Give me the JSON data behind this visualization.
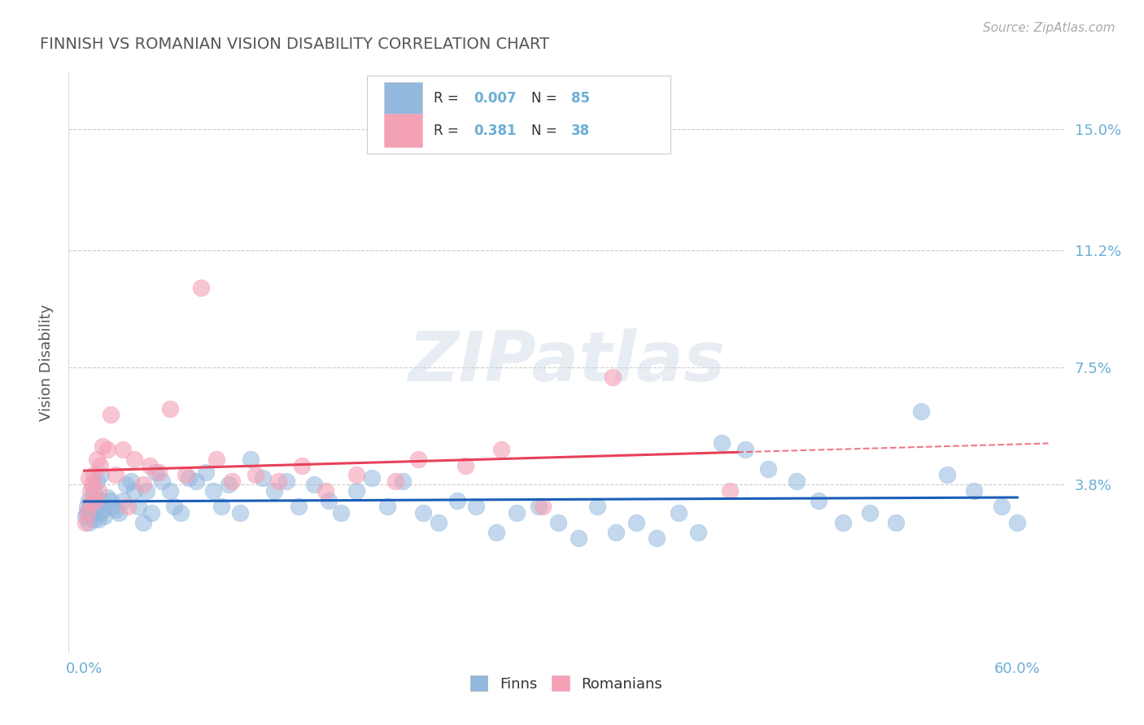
{
  "title": "FINNISH VS ROMANIAN VISION DISABILITY CORRELATION CHART",
  "source": "Source: ZipAtlas.com",
  "ylabel": "Vision Disability",
  "xlim": [
    -0.01,
    0.63
  ],
  "ylim": [
    -0.015,
    0.168
  ],
  "yticks": [
    0.038,
    0.075,
    0.112,
    0.15
  ],
  "ytick_labels": [
    "3.8%",
    "7.5%",
    "11.2%",
    "15.0%"
  ],
  "xtick_left_label": "0.0%",
  "xtick_right_label": "60.0%",
  "finn_color": "#92b8de",
  "romanian_color": "#f4a0b5",
  "finn_line_color": "#1a5eb8",
  "romanian_line_color": "#e8405a",
  "finn_R": 0.007,
  "finn_N": 85,
  "romanian_R": 0.381,
  "romanian_N": 38,
  "legend_finn_label": "Finns",
  "legend_romanian_label": "Romanians",
  "watermark": "ZIPatlas",
  "title_color": "#555555",
  "axis_label_color": "#555555",
  "tick_color": "#6baed6",
  "legend_text_color": "#333333",
  "grid_color": "#cccccc",
  "finn_x": [
    0.001,
    0.002,
    0.003,
    0.003,
    0.004,
    0.005,
    0.005,
    0.006,
    0.007,
    0.008,
    0.009,
    0.01,
    0.01,
    0.012,
    0.013,
    0.015,
    0.017,
    0.018,
    0.02,
    0.022,
    0.025,
    0.027,
    0.03,
    0.032,
    0.035,
    0.038,
    0.04,
    0.043,
    0.046,
    0.05,
    0.055,
    0.058,
    0.062,
    0.067,
    0.072,
    0.078,
    0.083,
    0.088,
    0.093,
    0.1,
    0.107,
    0.115,
    0.122,
    0.13,
    0.138,
    0.148,
    0.157,
    0.165,
    0.175,
    0.185,
    0.195,
    0.205,
    0.218,
    0.228,
    0.24,
    0.252,
    0.265,
    0.278,
    0.292,
    0.305,
    0.318,
    0.33,
    0.342,
    0.355,
    0.368,
    0.382,
    0.395,
    0.41,
    0.425,
    0.44,
    0.458,
    0.472,
    0.488,
    0.505,
    0.522,
    0.538,
    0.555,
    0.572,
    0.59,
    0.6,
    0.002,
    0.004,
    0.006,
    0.008,
    0.011
  ],
  "finn_y": [
    0.028,
    0.031,
    0.026,
    0.033,
    0.029,
    0.028,
    0.03,
    0.027,
    0.032,
    0.031,
    0.027,
    0.029,
    0.033,
    0.03,
    0.028,
    0.034,
    0.033,
    0.031,
    0.03,
    0.029,
    0.033,
    0.038,
    0.039,
    0.036,
    0.031,
    0.026,
    0.036,
    0.029,
    0.042,
    0.039,
    0.036,
    0.031,
    0.029,
    0.04,
    0.039,
    0.042,
    0.036,
    0.031,
    0.038,
    0.029,
    0.046,
    0.04,
    0.036,
    0.039,
    0.031,
    0.038,
    0.033,
    0.029,
    0.036,
    0.04,
    0.031,
    0.039,
    0.029,
    0.026,
    0.033,
    0.031,
    0.023,
    0.029,
    0.031,
    0.026,
    0.021,
    0.031,
    0.023,
    0.026,
    0.021,
    0.029,
    0.023,
    0.051,
    0.049,
    0.043,
    0.039,
    0.033,
    0.026,
    0.029,
    0.026,
    0.061,
    0.041,
    0.036,
    0.031,
    0.026,
    0.029,
    0.031,
    0.036,
    0.039,
    0.041
  ],
  "romanian_x": [
    0.001,
    0.002,
    0.003,
    0.004,
    0.004,
    0.005,
    0.006,
    0.007,
    0.008,
    0.009,
    0.01,
    0.012,
    0.015,
    0.017,
    0.02,
    0.025,
    0.028,
    0.032,
    0.038,
    0.042,
    0.048,
    0.055,
    0.065,
    0.075,
    0.085,
    0.095,
    0.11,
    0.125,
    0.14,
    0.155,
    0.175,
    0.2,
    0.215,
    0.245,
    0.268,
    0.295,
    0.34,
    0.415
  ],
  "romanian_y": [
    0.026,
    0.029,
    0.04,
    0.032,
    0.036,
    0.038,
    0.041,
    0.033,
    0.046,
    0.036,
    0.044,
    0.05,
    0.049,
    0.06,
    0.041,
    0.049,
    0.031,
    0.046,
    0.038,
    0.044,
    0.042,
    0.062,
    0.041,
    0.1,
    0.046,
    0.039,
    0.041,
    0.039,
    0.044,
    0.036,
    0.041,
    0.039,
    0.046,
    0.044,
    0.049,
    0.031,
    0.072,
    0.036
  ]
}
